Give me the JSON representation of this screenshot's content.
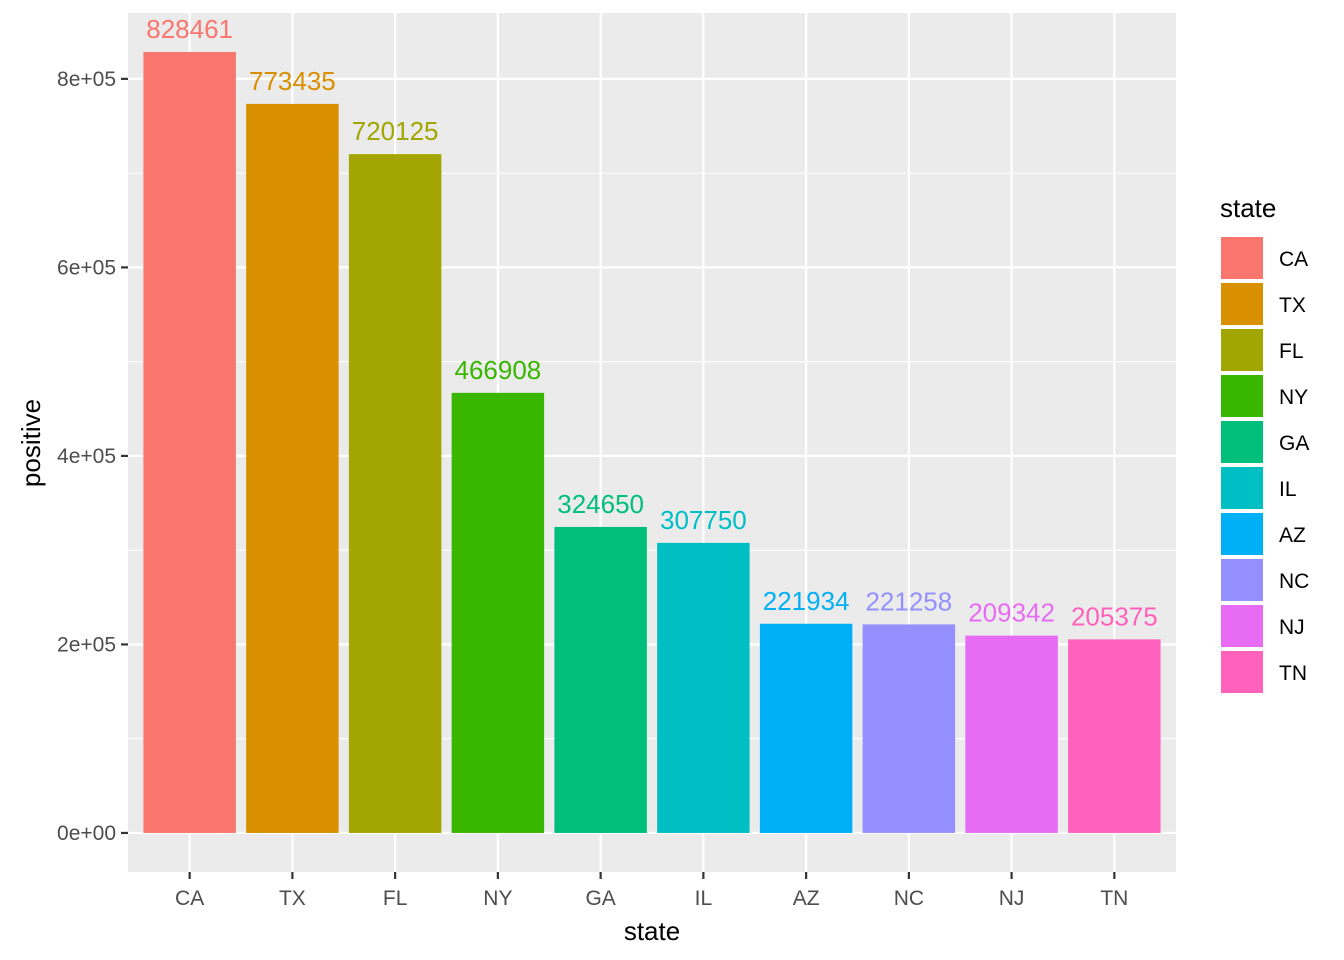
{
  "chart_data": {
    "type": "bar",
    "xlabel": "state",
    "ylabel": "positive",
    "categories": [
      "CA",
      "TX",
      "FL",
      "NY",
      "GA",
      "IL",
      "AZ",
      "NC",
      "NJ",
      "TN"
    ],
    "values": [
      828461,
      773435,
      720125,
      466908,
      324650,
      307750,
      221934,
      221258,
      209342,
      205375
    ],
    "data_labels": [
      "828461",
      "773435",
      "720125",
      "466908",
      "324650",
      "307750",
      "221934",
      "221258",
      "209342",
      "205375"
    ],
    "colors": [
      "#F8766D",
      "#D89000",
      "#A3A500",
      "#39B600",
      "#00BF7D",
      "#00BFC4",
      "#00B0F6",
      "#9590FF",
      "#E76BF3",
      "#FF62BC"
    ],
    "ylim": [
      -41423,
      869884
    ],
    "y_ticks": [
      0,
      200000,
      400000,
      600000,
      800000
    ],
    "y_tick_labels": [
      "0e+00",
      "2e+05",
      "4e+05",
      "6e+05",
      "8e+05"
    ],
    "grid": true,
    "panel_background": "#EBEBEB",
    "grid_color": "#FFFFFF",
    "legend": {
      "title": "state",
      "position": "right",
      "items": [
        "CA",
        "TX",
        "FL",
        "NY",
        "GA",
        "IL",
        "AZ",
        "NC",
        "NJ",
        "TN"
      ]
    }
  }
}
